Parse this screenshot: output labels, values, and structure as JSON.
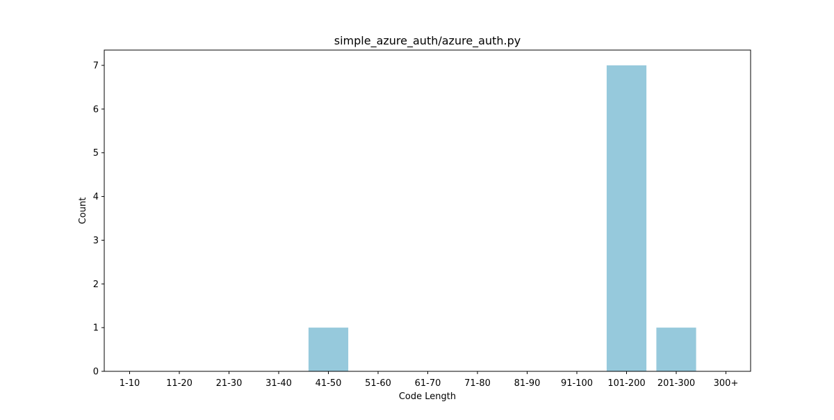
{
  "chart_data": {
    "type": "bar",
    "title": "simple_azure_auth/azure_auth.py",
    "xlabel": "Code Length",
    "ylabel": "Count",
    "categories": [
      "1-10",
      "11-20",
      "21-30",
      "31-40",
      "41-50",
      "51-60",
      "61-70",
      "71-80",
      "81-90",
      "91-100",
      "101-200",
      "201-300",
      "300+"
    ],
    "values": [
      0,
      0,
      0,
      0,
      1,
      0,
      0,
      0,
      0,
      0,
      7,
      1,
      0
    ],
    "ylim": [
      0,
      7.35
    ],
    "yticks": [
      "0",
      "1",
      "2",
      "3",
      "4",
      "5",
      "6",
      "7"
    ],
    "bar_color": "#96c9dc",
    "grid": false,
    "legend": "none"
  }
}
